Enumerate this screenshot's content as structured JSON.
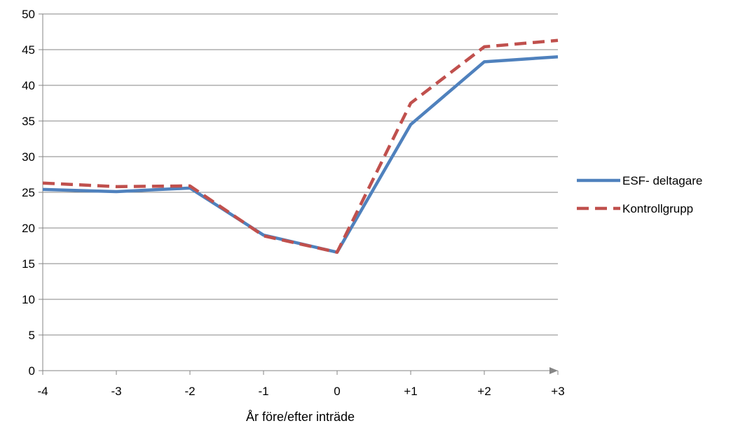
{
  "chart_data": {
    "type": "line",
    "title": "",
    "xlabel": "År före/efter inträde",
    "ylabel": "",
    "categories": [
      "-4",
      "-3",
      "-2",
      "-1",
      "0",
      "+1",
      "+2",
      "+3"
    ],
    "ylim": [
      0,
      50
    ],
    "yticks": [
      0,
      5,
      10,
      15,
      20,
      25,
      30,
      35,
      40,
      45,
      50
    ],
    "grid": true,
    "legend_position": "right",
    "series": [
      {
        "name": "ESF- deltagare",
        "values": [
          25.4,
          25.1,
          25.6,
          19.0,
          16.6,
          34.5,
          43.3,
          44.0
        ],
        "color": "#4f81bd",
        "style": "solid"
      },
      {
        "name": "Kontrollgrupp",
        "values": [
          26.3,
          25.8,
          25.9,
          18.9,
          16.6,
          37.5,
          45.4,
          46.3
        ],
        "color": "#c0504d",
        "style": "dashed"
      }
    ]
  }
}
